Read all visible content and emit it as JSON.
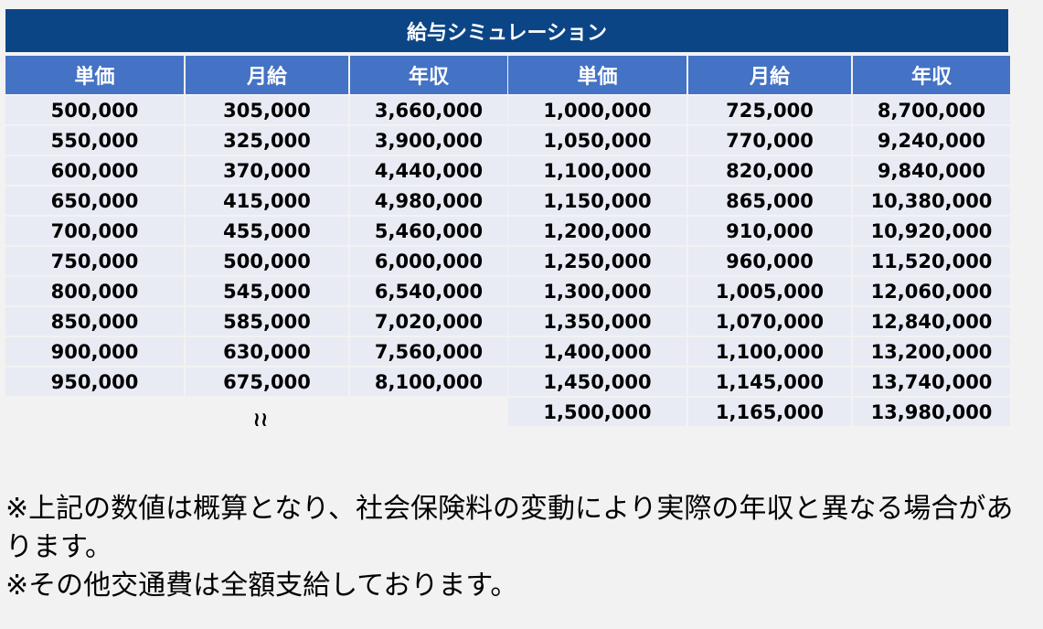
{
  "title": "給与シミュレーション",
  "headers": [
    "単価",
    "月給",
    "年収"
  ],
  "left_table": [
    [
      "500,000",
      "305,000",
      "3,660,000"
    ],
    [
      "550,000",
      "325,000",
      "3,900,000"
    ],
    [
      "600,000",
      "370,000",
      "4,440,000"
    ],
    [
      "650,000",
      "415,000",
      "4,980,000"
    ],
    [
      "700,000",
      "455,000",
      "5,460,000"
    ],
    [
      "750,000",
      "500,000",
      "6,000,000"
    ],
    [
      "800,000",
      "545,000",
      "6,540,000"
    ],
    [
      "850,000",
      "585,000",
      "7,020,000"
    ],
    [
      "900,000",
      "630,000",
      "7,560,000"
    ],
    [
      "950,000",
      "675,000",
      "8,100,000"
    ]
  ],
  "right_table": [
    [
      "1,000,000",
      "725,000",
      "8,700,000"
    ],
    [
      "1,050,000",
      "770,000",
      "9,240,000"
    ],
    [
      "1,100,000",
      "820,000",
      "9,840,000"
    ],
    [
      "1,150,000",
      "865,000",
      "10,380,000"
    ],
    [
      "1,200,000",
      "910,000",
      "10,920,000"
    ],
    [
      "1,250,000",
      "960,000",
      "11,520,000"
    ],
    [
      "1,300,000",
      "1,005,000",
      "12,060,000"
    ],
    [
      "1,350,000",
      "1,070,000",
      "12,840,000"
    ],
    [
      "1,400,000",
      "1,100,000",
      "13,200,000"
    ],
    [
      "1,450,000",
      "1,145,000",
      "13,740,000"
    ],
    [
      "1,500,000",
      "1,165,000",
      "13,980,000"
    ]
  ],
  "continuation_mark": "≀≀",
  "notes": [
    "※上記の数値は概算となり、社会保険料の変動により実際の年収と異なる場合があります。",
    "※その他交通費は全額支給しております。"
  ],
  "colors": {
    "title_bg": "#0b4586",
    "header_bg": "#4472c4",
    "cell_bg": "#e8ebf4",
    "page_bg": "#f2f2f2"
  }
}
